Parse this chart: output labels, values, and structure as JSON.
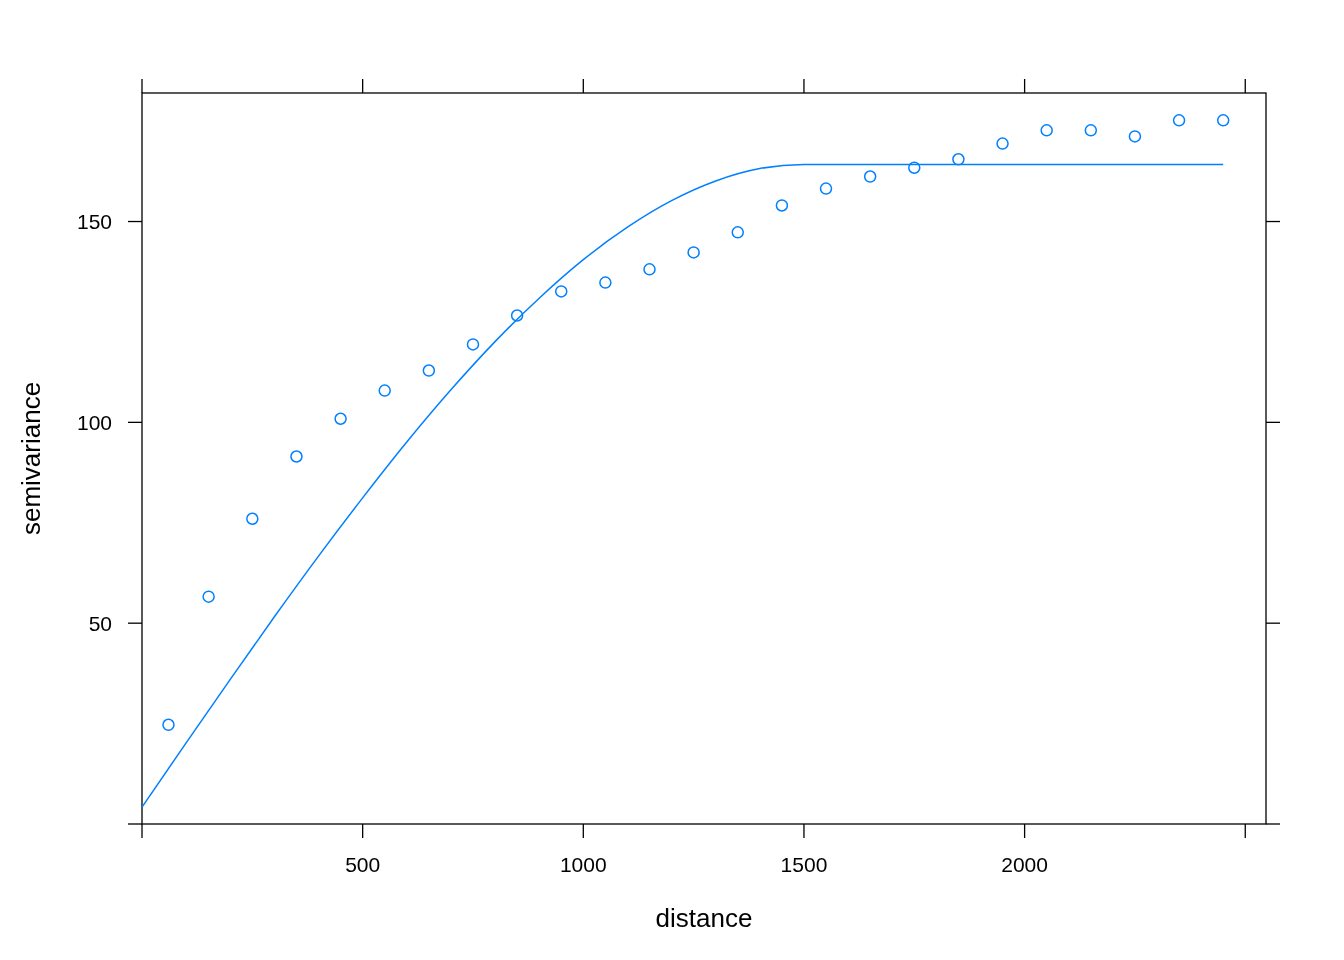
{
  "chart_data": {
    "type": "scatter",
    "xlabel": "distance",
    "ylabel": "semivariance",
    "xlim": [
      0,
      2547
    ],
    "ylim": [
      0,
      182
    ],
    "xticks": [
      {
        "value": 0,
        "label": null
      },
      500,
      1000,
      1500,
      2000,
      {
        "value": 2500,
        "label": null
      }
    ],
    "yticks": [
      {
        "value": 0,
        "label": null
      },
      50,
      100,
      150
    ],
    "series": [
      {
        "color": "#0080ff",
        "marker": "circle",
        "x": [
          60,
          151,
          250,
          350,
          450,
          550,
          650,
          750,
          850,
          950,
          1050,
          1150,
          1250,
          1350,
          1450,
          1550,
          1650,
          1750,
          1850,
          1950,
          2050,
          2150,
          2250,
          2350,
          2450
        ],
        "values": [
          24.7,
          56.6,
          76.0,
          91.5,
          100.9,
          107.9,
          112.9,
          119.4,
          126.6,
          132.6,
          134.8,
          138.1,
          142.3,
          147.3,
          154.0,
          158.2,
          161.2,
          163.4,
          165.5,
          169.4,
          172.7,
          172.7,
          171.2,
          175.2,
          175.2
        ]
      },
      {
        "type": "line",
        "color": "#0080ff",
        "line_style": "solid",
        "x": [
          0,
          100,
          200,
          300,
          400,
          500,
          600,
          700,
          800,
          900,
          1000,
          1100,
          1200,
          1300,
          1400,
          1500,
          2450
        ],
        "values": [
          4.2,
          20.2,
          36.0,
          51.6,
          66.7,
          81.2,
          95.1,
          108.1,
          120.1,
          130.9,
          140.5,
          148.6,
          155.2,
          160.1,
          163.2,
          164.2,
          164.2
        ]
      }
    ]
  }
}
